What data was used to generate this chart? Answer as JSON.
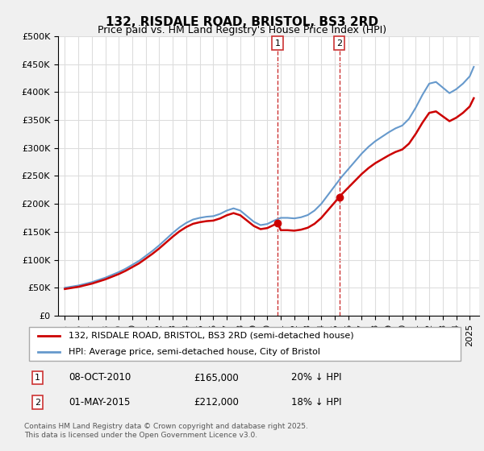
{
  "title": "132, RISDALE ROAD, BRISTOL, BS3 2RD",
  "subtitle": "Price paid vs. HM Land Registry's House Price Index (HPI)",
  "legend_label_red": "132, RISDALE ROAD, BRISTOL, BS3 2RD (semi-detached house)",
  "legend_label_blue": "HPI: Average price, semi-detached house, City of Bristol",
  "annotation1_label": "1",
  "annotation1_date": "08-OCT-2010",
  "annotation1_price": 165000,
  "annotation1_text": "20% ↓ HPI",
  "annotation2_label": "2",
  "annotation2_date": "01-MAY-2015",
  "annotation2_price": 212000,
  "annotation2_text": "18% ↓ HPI",
  "footer": "Contains HM Land Registry data © Crown copyright and database right 2025.\nThis data is licensed under the Open Government Licence v3.0.",
  "ylim": [
    0,
    500000
  ],
  "yticks": [
    0,
    50000,
    100000,
    150000,
    200000,
    250000,
    300000,
    350000,
    400000,
    450000,
    500000
  ],
  "background_color": "#f0f4ff",
  "plot_bg_color": "#ffffff",
  "red_color": "#cc0000",
  "blue_color": "#6699cc",
  "annotation_vline_color": "#cc0000",
  "hpi_years": [
    1995,
    1996,
    1997,
    1998,
    1999,
    2000,
    2001,
    2002,
    2003,
    2004,
    2005,
    2006,
    2007,
    2008,
    2009,
    2010,
    2011,
    2012,
    2013,
    2014,
    2015,
    2016,
    2017,
    2018,
    2019,
    2020,
    2021,
    2022,
    2023,
    2024,
    2025
  ],
  "hpi_values": [
    52000,
    55000,
    58000,
    62000,
    68000,
    76000,
    88000,
    108000,
    128000,
    148000,
    162000,
    172000,
    185000,
    175000,
    165000,
    178000,
    178000,
    180000,
    192000,
    215000,
    238000,
    265000,
    295000,
    320000,
    340000,
    355000,
    390000,
    415000,
    395000,
    415000,
    445000
  ],
  "paid_years": [
    2010.77,
    2015.33
  ],
  "paid_values": [
    165000,
    212000
  ],
  "paid_points_years": [
    2010.77,
    2015.33
  ],
  "paid_points_values": [
    165000,
    212000
  ]
}
